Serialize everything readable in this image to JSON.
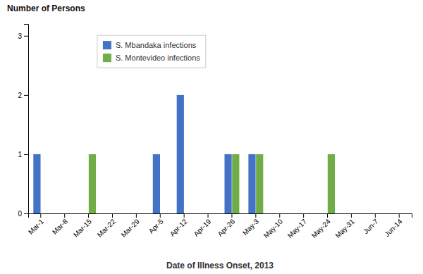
{
  "chart_data": {
    "type": "bar",
    "xlabel": "Date of Illness Onset, 2013",
    "ylabel": "Number of Persons",
    "categories": [
      "Mar-1",
      "Mar-8",
      "Mar-15",
      "Mar-22",
      "Mar-29",
      "Apr-5",
      "Apr-12",
      "Apr-19",
      "Apr-26",
      "May-3",
      "May-10",
      "May-17",
      "May-24",
      "May-31",
      "Jun-7",
      "Jun-14"
    ],
    "series": [
      {
        "name": "S. Mbandaka infections",
        "color": "#4472C4",
        "values": [
          1,
          0,
          0,
          0,
          0,
          1,
          2,
          0,
          1,
          1,
          0,
          0,
          0,
          0,
          0,
          0
        ]
      },
      {
        "name": "S. Montevideo infections",
        "color": "#70AD47",
        "values": [
          0,
          0,
          1,
          0,
          0,
          0,
          0,
          0,
          1,
          1,
          0,
          0,
          1,
          0,
          0,
          0
        ]
      }
    ],
    "ylim": [
      0,
      3.2
    ],
    "yticks": [
      0,
      1,
      2,
      3
    ],
    "grid": false,
    "legend": "upper left"
  }
}
